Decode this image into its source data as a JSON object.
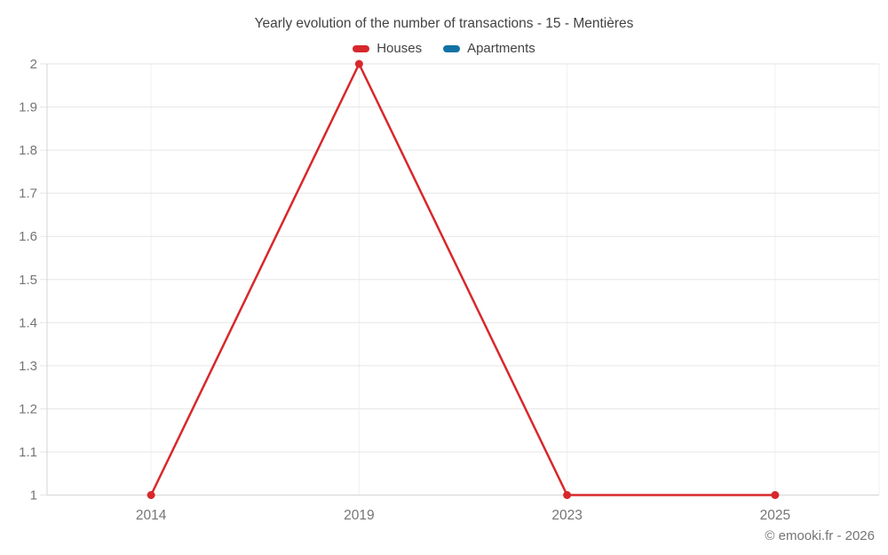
{
  "title": "Yearly evolution of the number of transactions - 15 - Mentières",
  "legend": [
    {
      "label": "Houses",
      "color": "#d7282c"
    },
    {
      "label": "Apartments",
      "color": "#1272a5"
    }
  ],
  "footer": "© emooki.fr - 2026",
  "chart_data": {
    "type": "line",
    "title": "Yearly evolution of the number of transactions - 15 - Mentières",
    "categories": [
      "2014",
      "2019",
      "2023",
      "2025"
    ],
    "series": [
      {
        "name": "Houses",
        "color": "#d7282c",
        "values": [
          1,
          2,
          1,
          1
        ]
      },
      {
        "name": "Apartments",
        "color": "#1272a5",
        "values": []
      }
    ],
    "xlabel": "",
    "ylabel": "",
    "ylim": [
      1,
      2
    ],
    "y_ticks": [
      "1",
      "1.1",
      "1.2",
      "1.3",
      "1.4",
      "1.5",
      "1.6",
      "1.7",
      "1.8",
      "1.9",
      "2"
    ],
    "grid": true,
    "legend_position": "top",
    "colors": {
      "grid_horizontal": "#e6e6e6",
      "grid_vertical": "#f0f0f0",
      "axis": "#d6d6d6",
      "tick_text": "#757575"
    }
  }
}
